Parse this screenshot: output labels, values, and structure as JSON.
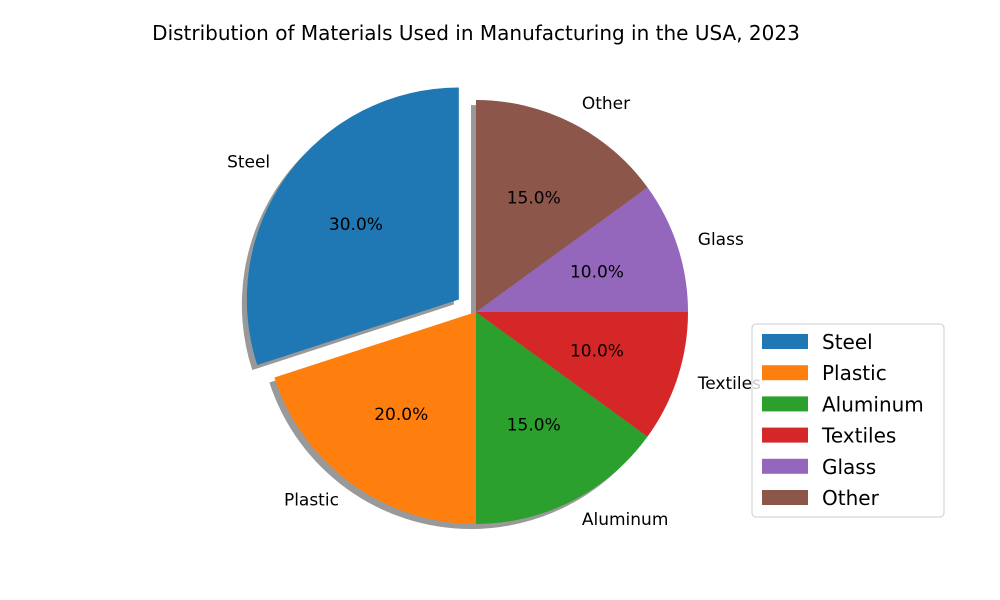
{
  "chart_data": {
    "type": "pie",
    "title": "Distribution of Materials Used in Manufacturing in the USA, 2023",
    "slices": [
      {
        "label": "Steel",
        "value": 30.0,
        "pct_label": "30.0%",
        "color": "#1f77b4",
        "exploded": true
      },
      {
        "label": "Plastic",
        "value": 20.0,
        "pct_label": "20.0%",
        "color": "#ff7f0e",
        "exploded": false
      },
      {
        "label": "Aluminum",
        "value": 15.0,
        "pct_label": "15.0%",
        "color": "#2ca02c",
        "exploded": false
      },
      {
        "label": "Textiles",
        "value": 10.0,
        "pct_label": "10.0%",
        "color": "#d62728",
        "exploded": false
      },
      {
        "label": "Glass",
        "value": 10.0,
        "pct_label": "10.0%",
        "color": "#9467bd",
        "exploded": false
      },
      {
        "label": "Other",
        "value": 15.0,
        "pct_label": "15.0%",
        "color": "#8c564b",
        "exploded": false
      }
    ],
    "legend": {
      "entries": [
        "Steel",
        "Plastic",
        "Aluminum",
        "Textiles",
        "Glass",
        "Other"
      ],
      "placement": "right"
    },
    "shadow": true
  }
}
